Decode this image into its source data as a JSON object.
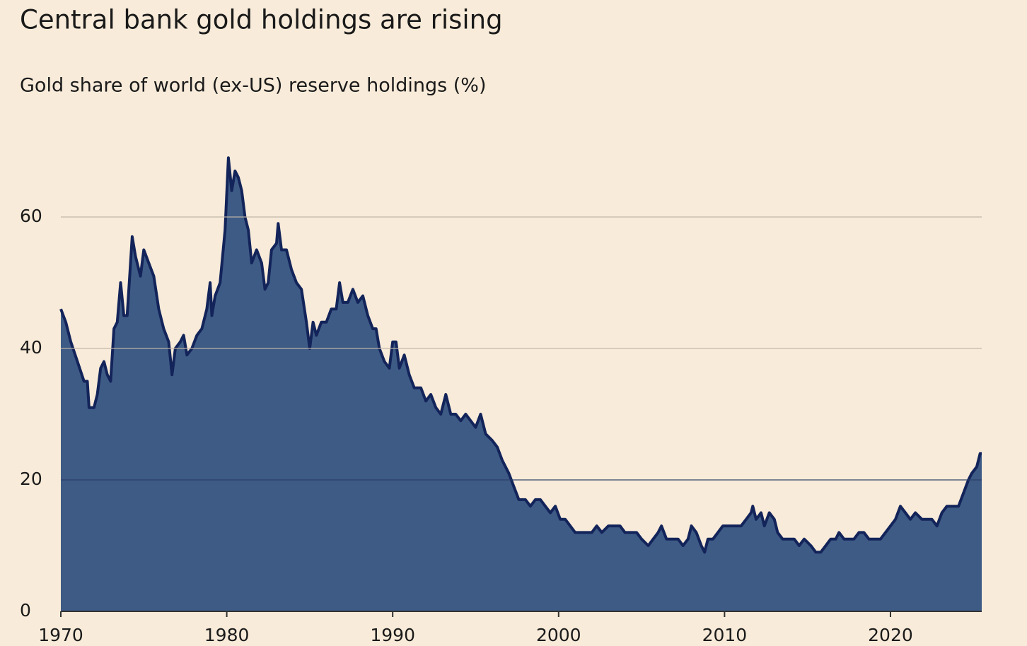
{
  "chart_data": {
    "type": "area",
    "title": "Central bank gold holdings are rising",
    "subtitle": "Gold share of world (ex-US) reserve holdings (%)",
    "fill_color": "#3e5b86",
    "line_color": "#13245a",
    "grid": true,
    "xlim": [
      1970,
      2025.5
    ],
    "ylim": [
      0,
      70
    ],
    "xticks": [
      1970,
      1980,
      1990,
      2000,
      2010,
      2020
    ],
    "yticks": [
      0,
      20,
      40,
      60
    ],
    "x": [
      1970.0,
      1970.3,
      1970.6,
      1971.0,
      1971.4,
      1971.6,
      1971.7,
      1972.0,
      1972.2,
      1972.4,
      1972.6,
      1972.8,
      1973.0,
      1973.2,
      1973.4,
      1973.6,
      1973.8,
      1974.0,
      1974.3,
      1974.5,
      1974.8,
      1975.0,
      1975.3,
      1975.6,
      1975.9,
      1976.2,
      1976.5,
      1976.7,
      1976.9,
      1977.2,
      1977.4,
      1977.6,
      1977.9,
      1978.2,
      1978.5,
      1978.8,
      1979.0,
      1979.1,
      1979.3,
      1979.6,
      1979.9,
      1980.1,
      1980.3,
      1980.5,
      1980.7,
      1980.9,
      1981.1,
      1981.3,
      1981.5,
      1981.8,
      1982.1,
      1982.3,
      1982.5,
      1982.7,
      1983.0,
      1983.1,
      1983.3,
      1983.6,
      1983.9,
      1984.2,
      1984.5,
      1984.8,
      1985.0,
      1985.2,
      1985.4,
      1985.7,
      1986.0,
      1986.3,
      1986.6,
      1986.8,
      1987.0,
      1987.3,
      1987.6,
      1987.9,
      1988.2,
      1988.5,
      1988.8,
      1989.0,
      1989.2,
      1989.5,
      1989.8,
      1990.0,
      1990.2,
      1990.4,
      1990.7,
      1991.0,
      1991.3,
      1991.7,
      1992.0,
      1992.3,
      1992.6,
      1992.9,
      1993.2,
      1993.5,
      1993.8,
      1994.1,
      1994.4,
      1994.7,
      1995.0,
      1995.3,
      1995.6,
      1996.0,
      1996.3,
      1996.6,
      1997.0,
      1997.3,
      1997.6,
      1998.0,
      1998.3,
      1998.6,
      1998.9,
      1999.2,
      1999.5,
      1999.8,
      2000.1,
      2000.4,
      2000.7,
      2001.0,
      2001.5,
      2002.0,
      2002.3,
      2002.6,
      2003.0,
      2003.3,
      2003.7,
      2004.0,
      2004.4,
      2004.7,
      2005.0,
      2005.4,
      2005.7,
      2006.0,
      2006.2,
      2006.5,
      2006.8,
      2007.2,
      2007.5,
      2007.8,
      2008.0,
      2008.3,
      2008.6,
      2008.8,
      2009.0,
      2009.3,
      2009.6,
      2009.9,
      2010.3,
      2010.7,
      2011.0,
      2011.3,
      2011.6,
      2011.7,
      2011.9,
      2012.2,
      2012.4,
      2012.7,
      2013.0,
      2013.2,
      2013.5,
      2013.8,
      2014.2,
      2014.5,
      2014.8,
      2015.2,
      2015.5,
      2015.8,
      2016.1,
      2016.4,
      2016.7,
      2016.9,
      2017.2,
      2017.5,
      2017.8,
      2018.1,
      2018.4,
      2018.7,
      2019.0,
      2019.4,
      2019.7,
      2020.0,
      2020.3,
      2020.6,
      2020.9,
      2021.2,
      2021.5,
      2021.9,
      2022.2,
      2022.5,
      2022.8,
      2023.1,
      2023.4,
      2023.8,
      2024.1,
      2024.4,
      2024.7,
      2024.9,
      2025.2,
      2025.4,
      2025.5
    ],
    "values": [
      46,
      44,
      41,
      38,
      35,
      35,
      31,
      31,
      33,
      37,
      38,
      36,
      35,
      43,
      44,
      50,
      45,
      45,
      57,
      54,
      51,
      55,
      53,
      51,
      46,
      43,
      41,
      36,
      40,
      41,
      42,
      39,
      40,
      42,
      43,
      46,
      50,
      45,
      48,
      50,
      58,
      69,
      64,
      67,
      66,
      64,
      60,
      58,
      53,
      55,
      53,
      49,
      50,
      55,
      56,
      59,
      55,
      55,
      52,
      50,
      49,
      44,
      40,
      44,
      42,
      44,
      44,
      46,
      46,
      50,
      47,
      47,
      49,
      47,
      48,
      45,
      43,
      43,
      40,
      38,
      37,
      41,
      41,
      37,
      39,
      36,
      34,
      34,
      32,
      33,
      31,
      30,
      33,
      30,
      30,
      29,
      30,
      29,
      28,
      30,
      27,
      26,
      25,
      23,
      21,
      19,
      17,
      17,
      16,
      17,
      17,
      16,
      15,
      16,
      14,
      14,
      13,
      12,
      12,
      12,
      13,
      12,
      13,
      13,
      13,
      12,
      12,
      12,
      11,
      10,
      11,
      12,
      13,
      11,
      11,
      11,
      10,
      11,
      13,
      12,
      10,
      9,
      11,
      11,
      12,
      13,
      13,
      13,
      13,
      14,
      15,
      16,
      14,
      15,
      13,
      15,
      14,
      12,
      11,
      11,
      11,
      10,
      11,
      10,
      9,
      9,
      10,
      11,
      11,
      12,
      11,
      11,
      11,
      12,
      12,
      11,
      11,
      11,
      12,
      13,
      14,
      16,
      15,
      14,
      15,
      14,
      14,
      14,
      13,
      15,
      16,
      16,
      16,
      18,
      20,
      21,
      22,
      24,
      24
    ]
  }
}
